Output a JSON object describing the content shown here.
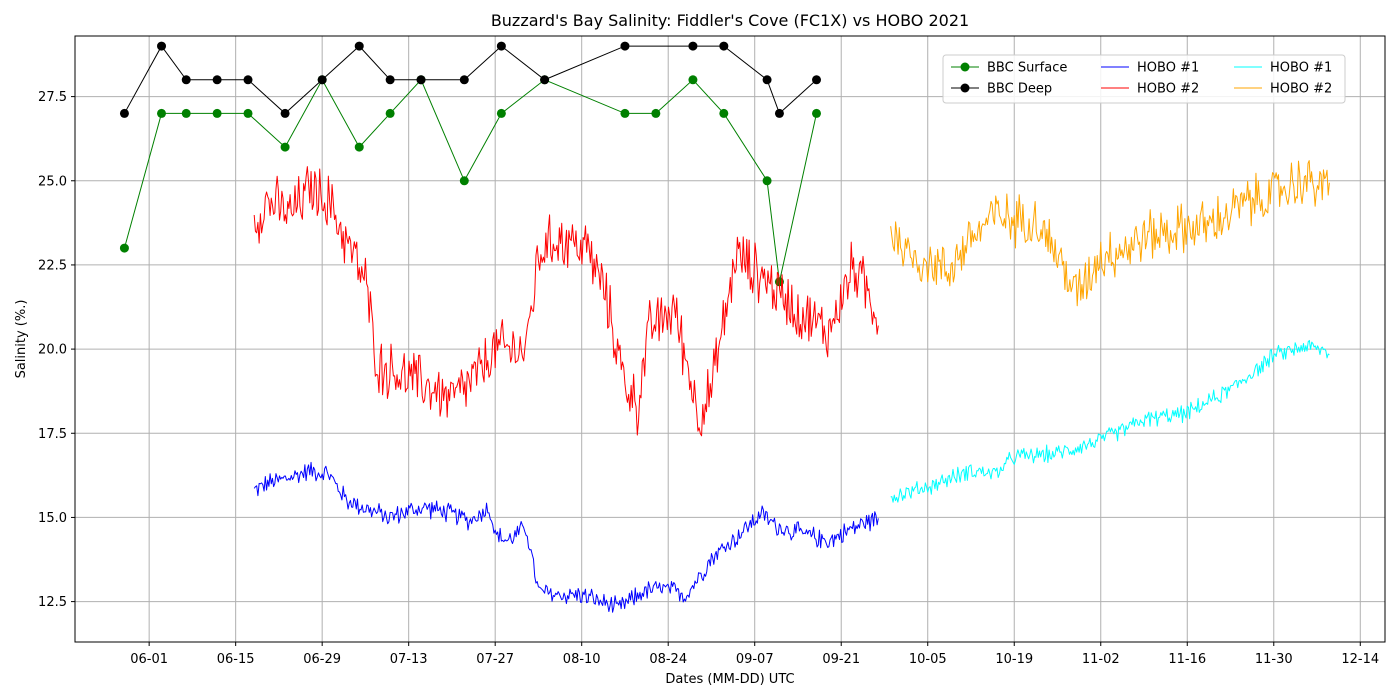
{
  "chart_data": {
    "type": "line",
    "title": "Buzzard's Bay Salinity: Fiddler's Cove (FC1X) vs HOBO 2021",
    "xlabel": "Dates (MM-DD) UTC",
    "ylabel": "Salinity (%.)",
    "xlim": [
      "2021-05-20",
      "2021-12-18"
    ],
    "ylim": [
      11.3,
      29.3
    ],
    "x_ticks": [
      "2021-06-01",
      "2021-06-15",
      "2021-06-29",
      "2021-07-13",
      "2021-07-27",
      "2021-08-10",
      "2021-08-24",
      "2021-09-07",
      "2021-09-21",
      "2021-10-05",
      "2021-10-19",
      "2021-11-02",
      "2021-11-16",
      "2021-11-30",
      "2021-12-14"
    ],
    "x_tick_labels": [
      "06-01",
      "06-15",
      "06-29",
      "07-13",
      "07-27",
      "08-10",
      "08-24",
      "09-07",
      "09-21",
      "10-05",
      "10-19",
      "11-02",
      "11-16",
      "11-30",
      "12-14"
    ],
    "y_ticks": [
      12.5,
      15.0,
      17.5,
      20.0,
      22.5,
      25.0,
      27.5
    ],
    "y_tick_labels": [
      "12.5",
      "15.0",
      "17.5",
      "20.0",
      "22.5",
      "25.0",
      "27.5"
    ],
    "grid": true,
    "legend_position": "top-right",
    "legend_columns": 3,
    "series": [
      {
        "name": "BBC Surface",
        "style": "line-markers",
        "color": "#008000",
        "x": [
          "2021-05-28",
          "2021-06-03",
          "2021-06-07",
          "2021-06-12",
          "2021-06-17",
          "2021-06-23",
          "2021-06-29",
          "2021-07-05",
          "2021-07-10",
          "2021-07-15",
          "2021-07-22",
          "2021-07-28",
          "2021-08-04",
          "2021-08-17",
          "2021-08-22",
          "2021-08-28",
          "2021-09-02",
          "2021-09-09",
          "2021-09-11",
          "2021-09-17"
        ],
        "y": [
          23,
          27,
          27,
          27,
          27,
          26,
          28,
          26,
          27,
          28,
          25,
          27,
          28,
          27,
          27,
          28,
          27,
          25,
          22,
          27
        ]
      },
      {
        "name": "BBC Deep",
        "style": "line-markers",
        "color": "#000000",
        "x": [
          "2021-05-28",
          "2021-06-03",
          "2021-06-07",
          "2021-06-12",
          "2021-06-17",
          "2021-06-23",
          "2021-06-29",
          "2021-07-05",
          "2021-07-10",
          "2021-07-15",
          "2021-07-22",
          "2021-07-28",
          "2021-08-04",
          "2021-08-17",
          "2021-08-28",
          "2021-09-02",
          "2021-09-09",
          "2021-09-11",
          "2021-09-17"
        ],
        "y": [
          27,
          29,
          28,
          28,
          28,
          27,
          28,
          29,
          28,
          28,
          28,
          29,
          28,
          29,
          29,
          29,
          28,
          27,
          28
        ]
      },
      {
        "name": "HOBO #1",
        "style": "noisy-line",
        "color": "#0000ff",
        "noise": 0.35,
        "x": [
          "2021-06-18",
          "2021-06-20",
          "2021-06-24",
          "2021-06-27",
          "2021-06-30",
          "2021-07-03",
          "2021-07-07",
          "2021-07-10",
          "2021-07-13",
          "2021-07-16",
          "2021-07-20",
          "2021-07-23",
          "2021-07-26",
          "2021-07-27",
          "2021-07-29",
          "2021-08-01",
          "2021-08-03",
          "2021-08-06",
          "2021-08-10",
          "2021-08-13",
          "2021-08-16",
          "2021-08-20",
          "2021-08-23",
          "2021-08-27",
          "2021-08-31",
          "2021-09-04",
          "2021-09-08",
          "2021-09-11",
          "2021-09-15",
          "2021-09-19",
          "2021-09-23",
          "2021-09-27"
        ],
        "y": [
          15.8,
          16.0,
          16.2,
          16.4,
          16.3,
          15.5,
          15.2,
          15.0,
          15.2,
          15.3,
          15.1,
          14.9,
          15.3,
          14.5,
          14.3,
          14.7,
          12.8,
          12.7,
          12.7,
          12.5,
          12.3,
          12.8,
          12.9,
          12.7,
          13.8,
          14.4,
          15.1,
          14.7,
          14.5,
          14.3,
          14.7,
          15.0
        ]
      },
      {
        "name": "HOBO #2",
        "style": "noisy-line",
        "color": "#ff0000",
        "noise": 1.0,
        "x": [
          "2021-06-18",
          "2021-06-20",
          "2021-06-24",
          "2021-06-27",
          "2021-06-30",
          "2021-07-03",
          "2021-07-06",
          "2021-07-08",
          "2021-07-15",
          "2021-07-20",
          "2021-07-24",
          "2021-07-27",
          "2021-08-01",
          "2021-08-03",
          "2021-08-06",
          "2021-08-11",
          "2021-08-14",
          "2021-08-17",
          "2021-08-19",
          "2021-08-21",
          "2021-08-25",
          "2021-08-29",
          "2021-08-31",
          "2021-09-04",
          "2021-09-08",
          "2021-09-12",
          "2021-09-15",
          "2021-09-19",
          "2021-09-23",
          "2021-09-27"
        ],
        "y": [
          23.8,
          24.4,
          24.0,
          24.8,
          24.4,
          23.2,
          22.0,
          19.5,
          19.0,
          18.5,
          19.2,
          20.0,
          20.0,
          22.8,
          23.3,
          23.0,
          21.5,
          19.0,
          18.3,
          20.6,
          21.2,
          18.0,
          18.8,
          22.8,
          22.2,
          21.5,
          21.0,
          20.5,
          22.5,
          21.0
        ]
      },
      {
        "name": "HOBO #1",
        "style": "noisy-line",
        "color": "#00ffff",
        "noise": 0.3,
        "x": [
          "2021-09-29",
          "2021-10-05",
          "2021-10-12",
          "2021-10-16",
          "2021-10-19",
          "2021-10-26",
          "2021-11-02",
          "2021-11-09",
          "2021-11-16",
          "2021-11-23",
          "2021-11-30",
          "2021-12-05",
          "2021-12-09"
        ],
        "y": [
          15.6,
          15.9,
          16.4,
          16.3,
          16.8,
          16.9,
          17.3,
          17.9,
          18.1,
          18.8,
          19.8,
          20.1,
          19.9
        ]
      },
      {
        "name": "HOBO #2",
        "style": "noisy-line",
        "color": "#ffa500",
        "noise": 0.9,
        "x": [
          "2021-09-29",
          "2021-10-02",
          "2021-10-05",
          "2021-10-08",
          "2021-10-12",
          "2021-10-16",
          "2021-10-19",
          "2021-10-22",
          "2021-10-26",
          "2021-10-29",
          "2021-11-02",
          "2021-11-06",
          "2021-11-10",
          "2021-11-16",
          "2021-11-20",
          "2021-11-25",
          "2021-11-30",
          "2021-12-04",
          "2021-12-09"
        ],
        "y": [
          23.5,
          22.8,
          22.6,
          22.3,
          23.3,
          24.0,
          23.8,
          24.0,
          22.8,
          21.6,
          22.8,
          23.0,
          23.4,
          23.6,
          23.7,
          24.3,
          24.6,
          25.0,
          24.8
        ]
      }
    ]
  }
}
